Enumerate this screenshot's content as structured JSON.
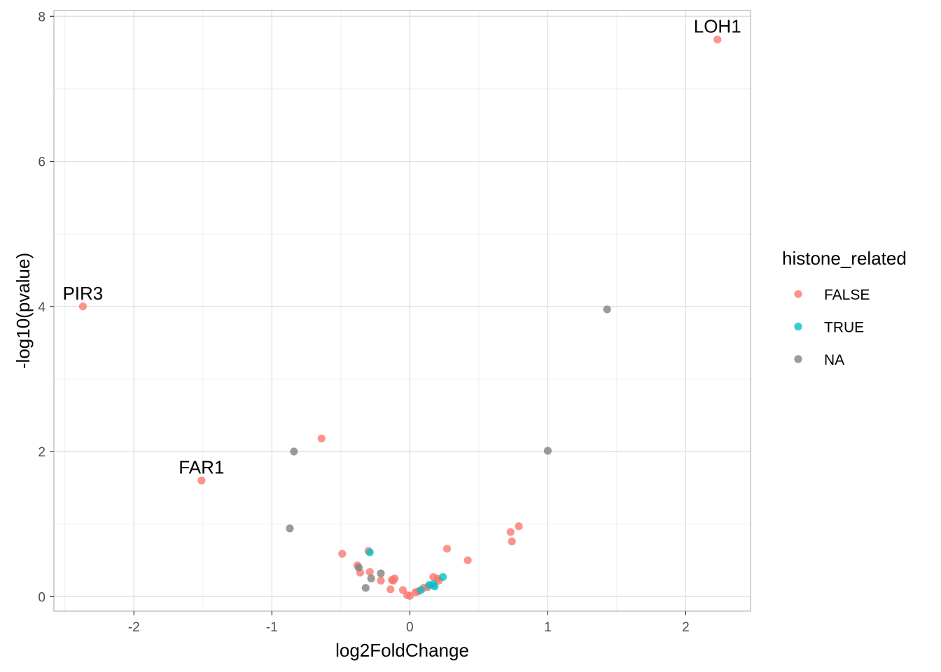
{
  "chart_data": {
    "type": "scatter",
    "xlabel": "log2FoldChange",
    "ylabel": "-log10(pvalue)",
    "xlim": [
      -2.58,
      2.47
    ],
    "ylim": [
      -0.2,
      8.08
    ],
    "x_ticks": [
      -2,
      -1,
      0,
      1,
      2
    ],
    "x_tick_labels": [
      "-2",
      "-1",
      "0",
      "1",
      "2"
    ],
    "y_ticks": [
      0,
      2,
      4,
      6,
      8
    ],
    "y_tick_labels": [
      "0",
      "2",
      "4",
      "6",
      "8"
    ],
    "grid": true,
    "legend": {
      "title": "histone_related",
      "position": "right",
      "entries": [
        {
          "label": "FALSE",
          "color": "#F8766D"
        },
        {
          "label": "TRUE",
          "color": "#00BFC4"
        },
        {
          "label": "NA",
          "color": "#7F7F7F"
        }
      ]
    },
    "series": [
      {
        "name": "FALSE",
        "color": "#F8766D",
        "points": [
          {
            "x": 2.23,
            "y": 7.68,
            "label": "LOH1"
          },
          {
            "x": -2.37,
            "y": 4.0,
            "label": "PIR3"
          },
          {
            "x": -1.51,
            "y": 1.6,
            "label": "FAR1"
          },
          {
            "x": -0.64,
            "y": 2.18
          },
          {
            "x": -0.49,
            "y": 0.59
          },
          {
            "x": -0.3,
            "y": 0.63
          },
          {
            "x": -0.38,
            "y": 0.43
          },
          {
            "x": -0.36,
            "y": 0.33
          },
          {
            "x": -0.29,
            "y": 0.34
          },
          {
            "x": -0.21,
            "y": 0.22
          },
          {
            "x": -0.14,
            "y": 0.1
          },
          {
            "x": -0.13,
            "y": 0.23
          },
          {
            "x": -0.12,
            "y": 0.22
          },
          {
            "x": -0.11,
            "y": 0.25
          },
          {
            "x": -0.05,
            "y": 0.09
          },
          {
            "x": -0.02,
            "y": 0.02
          },
          {
            "x": 0.0,
            "y": 0.01
          },
          {
            "x": 0.04,
            "y": 0.06
          },
          {
            "x": 0.06,
            "y": 0.07
          },
          {
            "x": 0.1,
            "y": 0.12
          },
          {
            "x": 0.13,
            "y": 0.13
          },
          {
            "x": 0.17,
            "y": 0.27
          },
          {
            "x": 0.2,
            "y": 0.25
          },
          {
            "x": 0.21,
            "y": 0.22
          },
          {
            "x": 0.27,
            "y": 0.66
          },
          {
            "x": 0.42,
            "y": 0.5
          },
          {
            "x": 0.73,
            "y": 0.89
          },
          {
            "x": 0.74,
            "y": 0.76
          },
          {
            "x": 0.79,
            "y": 0.97
          }
        ]
      },
      {
        "name": "TRUE",
        "color": "#00BFC4",
        "points": [
          {
            "x": -0.29,
            "y": 0.61
          },
          {
            "x": 0.08,
            "y": 0.09
          },
          {
            "x": 0.14,
            "y": 0.16
          },
          {
            "x": 0.17,
            "y": 0.17
          },
          {
            "x": 0.18,
            "y": 0.14
          },
          {
            "x": 0.24,
            "y": 0.27
          }
        ]
      },
      {
        "name": "NA",
        "color": "#7F7F7F",
        "points": [
          {
            "x": 1.43,
            "y": 3.96
          },
          {
            "x": -0.84,
            "y": 2.0
          },
          {
            "x": 1.0,
            "y": 2.01
          },
          {
            "x": -0.87,
            "y": 0.94
          },
          {
            "x": -0.37,
            "y": 0.4
          },
          {
            "x": -0.21,
            "y": 0.32
          },
          {
            "x": -0.28,
            "y": 0.25
          },
          {
            "x": -0.32,
            "y": 0.12
          }
        ]
      }
    ]
  }
}
